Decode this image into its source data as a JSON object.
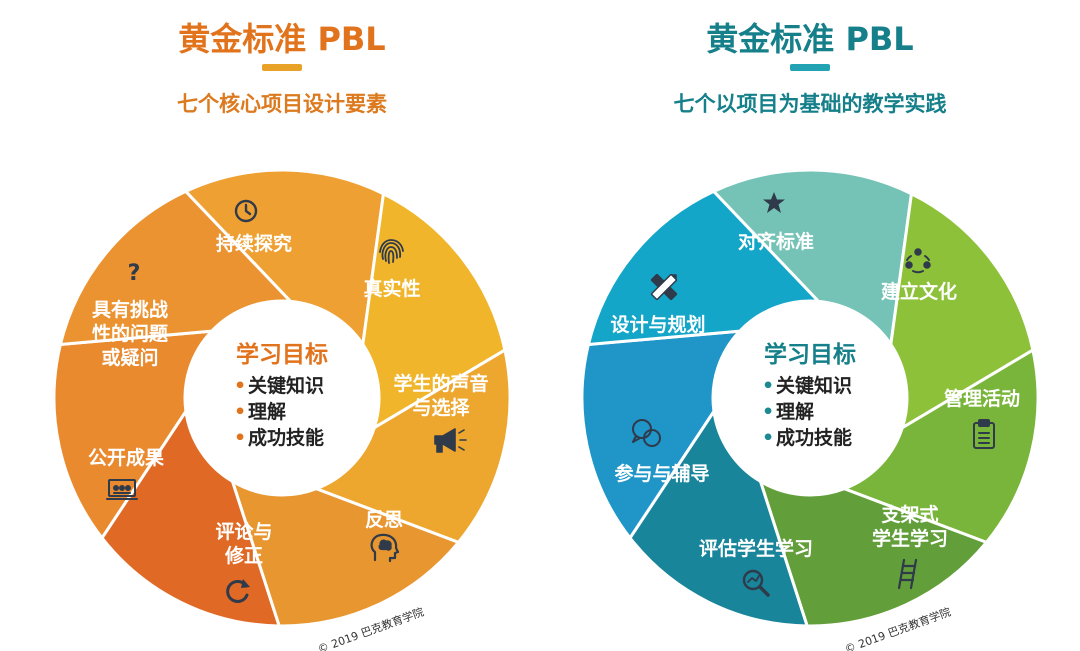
{
  "colors": {
    "left_accent": "#e2731d",
    "right_accent": "#1c8a93",
    "left_segments": [
      "#efa032",
      "#f0b52b",
      "#eda62e",
      "#e8962f",
      "#e06a25",
      "#e98a2f",
      "#ec9331"
    ],
    "right_segments": [
      "#74c3b6",
      "#8dc13a",
      "#7ab53b",
      "#629f3a",
      "#18859a",
      "#1f95c8",
      "#13a6c8"
    ],
    "icon_dark": "#2f3a4a"
  },
  "left": {
    "title": "黄金标准 PBL",
    "subtitle": "七个核心项目设计要素",
    "center_title": "学习目标",
    "center_items": [
      "关键知识",
      "理解",
      "成功技能"
    ],
    "segments": [
      {
        "lines": [
          "持续探究"
        ],
        "icon": "clock-icon"
      },
      {
        "lines": [
          "真实性"
        ],
        "icon": "fingerprint-icon"
      },
      {
        "lines": [
          "学生的声音",
          "与选择"
        ],
        "icon": "megaphone-icon"
      },
      {
        "lines": [
          "反思"
        ],
        "icon": "head-cloud-icon"
      },
      {
        "lines": [
          "评论与",
          "修正"
        ],
        "icon": "refresh-icon"
      },
      {
        "lines": [
          "公开成果"
        ],
        "icon": "presentation-icon"
      },
      {
        "lines": [
          "具有挑战",
          "性的问题",
          "或疑问"
        ],
        "icon": "question-icon"
      }
    ],
    "copyright": "© 2019 巴克教育学院"
  },
  "right": {
    "title": "黄金标准 PBL",
    "subtitle": "七个以项目为基础的教学实践",
    "center_title": "学习目标",
    "center_items": [
      "关键知识",
      "理解",
      "成功技能"
    ],
    "segments": [
      {
        "lines": [
          "对齐标准"
        ],
        "icon": "star-icon"
      },
      {
        "lines": [
          "建立文化"
        ],
        "icon": "people-circle-icon"
      },
      {
        "lines": [
          "管理活动"
        ],
        "icon": "clipboard-icon"
      },
      {
        "lines": [
          "支架式",
          "学生学习"
        ],
        "icon": "ladder-icon"
      },
      {
        "lines": [
          "评估学生学习"
        ],
        "icon": "magnifier-icon"
      },
      {
        "lines": [
          "参与与辅导"
        ],
        "icon": "chat-bubbles-icon"
      },
      {
        "lines": [
          "设计与规划"
        ],
        "icon": "pencil-ruler-icon"
      }
    ],
    "copyright": "© 2019 巴克教育学院"
  }
}
